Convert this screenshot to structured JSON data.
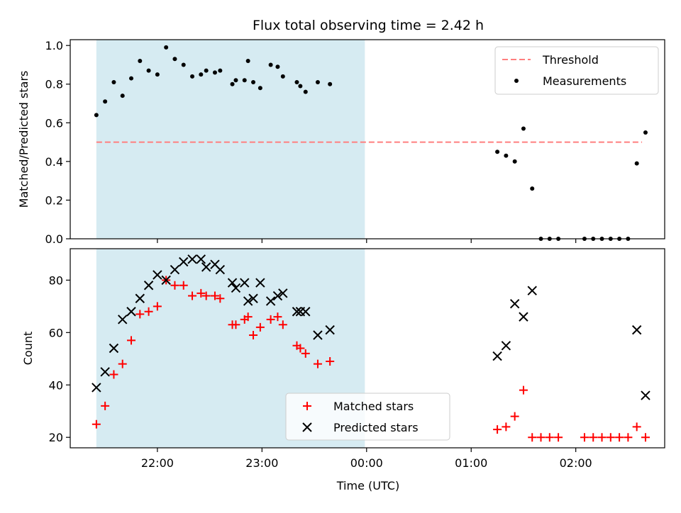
{
  "title": "Flux total observing time = 2.42 h",
  "chart_data": [
    {
      "type": "scatter",
      "panel": "top",
      "ylabel": "Matched/Predicted stars",
      "xlabel": "",
      "ylim": [
        0,
        1.03
      ],
      "yticks": [
        0.0,
        0.2,
        0.4,
        0.6,
        0.8,
        1.0
      ],
      "ytick_labels": [
        "0.0",
        "0.2",
        "0.4",
        "0.6",
        "0.8",
        "1.0"
      ],
      "threshold": {
        "name": "Threshold",
        "value": 0.5,
        "x_start": "21:25",
        "x_end": "02:38",
        "color": "#ff7f7f",
        "style": "dashed"
      },
      "shaded_region": {
        "x_start": "21:25",
        "x_end": "23:59",
        "color": "#add8e6"
      },
      "legend_position": "top-right",
      "legend": [
        "Threshold",
        "Measurements"
      ],
      "series": [
        {
          "name": "Measurements",
          "color": "#000000",
          "marker": "dot",
          "points": [
            [
              "21:25",
              0.64
            ],
            [
              "21:30",
              0.71
            ],
            [
              "21:35",
              0.81
            ],
            [
              "21:40",
              0.74
            ],
            [
              "21:45",
              0.83
            ],
            [
              "21:50",
              0.92
            ],
            [
              "21:55",
              0.87
            ],
            [
              "22:00",
              0.85
            ],
            [
              "22:05",
              0.99
            ],
            [
              "22:10",
              0.93
            ],
            [
              "22:15",
              0.9
            ],
            [
              "22:20",
              0.84
            ],
            [
              "22:25",
              0.85
            ],
            [
              "22:28",
              0.87
            ],
            [
              "22:33",
              0.86
            ],
            [
              "22:36",
              0.87
            ],
            [
              "22:43",
              0.8
            ],
            [
              "22:45",
              0.82
            ],
            [
              "22:50",
              0.82
            ],
            [
              "22:52",
              0.92
            ],
            [
              "22:55",
              0.81
            ],
            [
              "22:59",
              0.78
            ],
            [
              "23:05",
              0.9
            ],
            [
              "23:09",
              0.89
            ],
            [
              "23:12",
              0.84
            ],
            [
              "23:20",
              0.81
            ],
            [
              "23:22",
              0.79
            ],
            [
              "23:25",
              0.76
            ],
            [
              "23:32",
              0.81
            ],
            [
              "23:39",
              0.8
            ],
            [
              "01:15",
              0.45
            ],
            [
              "01:20",
              0.43
            ],
            [
              "01:25",
              0.4
            ],
            [
              "01:30",
              0.57
            ],
            [
              "01:35",
              0.26
            ],
            [
              "01:40",
              0.0
            ],
            [
              "01:45",
              0.0
            ],
            [
              "01:50",
              0.0
            ],
            [
              "02:05",
              0.0
            ],
            [
              "02:10",
              0.0
            ],
            [
              "02:15",
              0.0
            ],
            [
              "02:20",
              0.0
            ],
            [
              "02:25",
              0.0
            ],
            [
              "02:30",
              0.0
            ],
            [
              "02:35",
              0.39
            ],
            [
              "02:40",
              0.55
            ]
          ]
        }
      ]
    },
    {
      "type": "scatter",
      "panel": "bottom",
      "ylabel": "Count",
      "xlabel": "Time (UTC)",
      "ylim": [
        16,
        92
      ],
      "yticks": [
        20,
        40,
        60,
        80
      ],
      "ytick_labels": [
        "20",
        "40",
        "60",
        "80"
      ],
      "shaded_region": {
        "x_start": "21:25",
        "x_end": "23:59",
        "color": "#add8e6"
      },
      "legend_position": "lower-center",
      "legend": [
        "Matched stars",
        "Predicted stars"
      ],
      "series": [
        {
          "name": "Matched stars",
          "color": "#ff0000",
          "marker": "plus",
          "points": [
            [
              "21:25",
              25
            ],
            [
              "21:30",
              32
            ],
            [
              "21:35",
              44
            ],
            [
              "21:40",
              48
            ],
            [
              "21:45",
              57
            ],
            [
              "21:50",
              67
            ],
            [
              "21:55",
              68
            ],
            [
              "22:00",
              70
            ],
            [
              "22:05",
              80
            ],
            [
              "22:10",
              78
            ],
            [
              "22:15",
              78
            ],
            [
              "22:20",
              74
            ],
            [
              "22:25",
              75
            ],
            [
              "22:28",
              74
            ],
            [
              "22:33",
              74
            ],
            [
              "22:36",
              73
            ],
            [
              "22:43",
              63
            ],
            [
              "22:45",
              63
            ],
            [
              "22:50",
              65
            ],
            [
              "22:52",
              66
            ],
            [
              "22:55",
              59
            ],
            [
              "22:59",
              62
            ],
            [
              "23:05",
              65
            ],
            [
              "23:09",
              66
            ],
            [
              "23:12",
              63
            ],
            [
              "23:20",
              55
            ],
            [
              "23:22",
              54
            ],
            [
              "23:25",
              52
            ],
            [
              "23:32",
              48
            ],
            [
              "23:39",
              49
            ],
            [
              "01:15",
              23
            ],
            [
              "01:20",
              24
            ],
            [
              "01:25",
              28
            ],
            [
              "01:30",
              38
            ],
            [
              "01:35",
              20
            ],
            [
              "01:40",
              20
            ],
            [
              "01:45",
              20
            ],
            [
              "01:50",
              20
            ],
            [
              "02:05",
              20
            ],
            [
              "02:10",
              20
            ],
            [
              "02:15",
              20
            ],
            [
              "02:20",
              20
            ],
            [
              "02:25",
              20
            ],
            [
              "02:30",
              20
            ],
            [
              "02:35",
              24
            ],
            [
              "02:40",
              20
            ]
          ]
        },
        {
          "name": "Predicted stars",
          "color": "#000000",
          "marker": "x",
          "points": [
            [
              "21:25",
              39
            ],
            [
              "21:30",
              45
            ],
            [
              "21:35",
              54
            ],
            [
              "21:40",
              65
            ],
            [
              "21:45",
              68
            ],
            [
              "21:50",
              73
            ],
            [
              "21:55",
              78
            ],
            [
              "22:00",
              82
            ],
            [
              "22:05",
              80
            ],
            [
              "22:10",
              84
            ],
            [
              "22:15",
              87
            ],
            [
              "22:20",
              88
            ],
            [
              "22:25",
              88
            ],
            [
              "22:28",
              85
            ],
            [
              "22:33",
              86
            ],
            [
              "22:36",
              84
            ],
            [
              "22:43",
              79
            ],
            [
              "22:45",
              77
            ],
            [
              "22:50",
              79
            ],
            [
              "22:52",
              72
            ],
            [
              "22:55",
              73
            ],
            [
              "22:59",
              79
            ],
            [
              "23:05",
              72
            ],
            [
              "23:09",
              74
            ],
            [
              "23:12",
              75
            ],
            [
              "23:20",
              68
            ],
            [
              "23:22",
              68
            ],
            [
              "23:25",
              68
            ],
            [
              "23:32",
              59
            ],
            [
              "23:39",
              61
            ],
            [
              "01:15",
              51
            ],
            [
              "01:20",
              55
            ],
            [
              "01:25",
              71
            ],
            [
              "01:30",
              66
            ],
            [
              "01:35",
              76
            ],
            [
              "02:35",
              61
            ],
            [
              "02:40",
              36
            ]
          ]
        }
      ]
    }
  ],
  "x_axis": {
    "label": "Time (UTC)",
    "ticks": [
      "22:00",
      "23:00",
      "00:00",
      "01:00",
      "02:00"
    ],
    "range": [
      "21:10",
      "02:51"
    ]
  }
}
